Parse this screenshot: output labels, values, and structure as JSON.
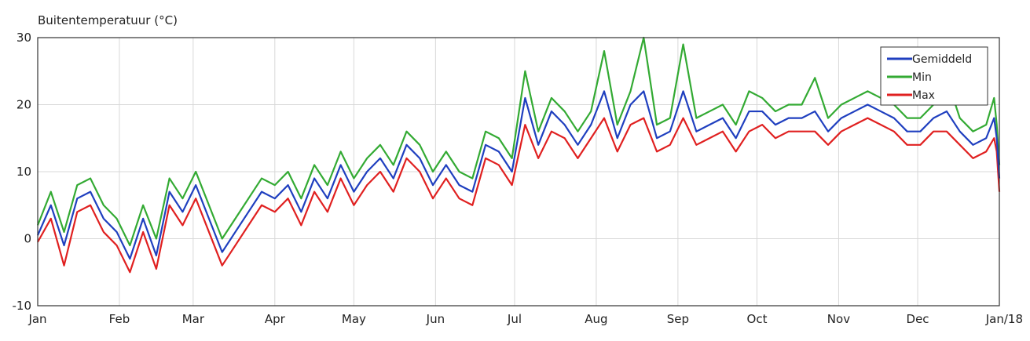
{
  "chart_data": {
    "type": "line",
    "title": "Buitentemperatuur (°C)",
    "xlabel": "",
    "ylabel": "",
    "ylim": [
      -10,
      30
    ],
    "yticks": [
      -10,
      0,
      10,
      20,
      30
    ],
    "grid": true,
    "legend_position": "top-right",
    "x_months": [
      "Jan",
      "Feb",
      "Mar",
      "Apr",
      "May",
      "Jun",
      "Jul",
      "Aug",
      "Sep",
      "Oct",
      "Nov",
      "Dec",
      "Jan/18"
    ],
    "month_days": [
      0,
      31,
      59,
      90,
      120,
      151,
      181,
      212,
      243,
      273,
      304,
      334,
      365
    ],
    "series": [
      {
        "name": "Gemiddeld",
        "color": "#1f3fbf",
        "values": [
          [
            0,
            0.5
          ],
          [
            5,
            5
          ],
          [
            10,
            -1
          ],
          [
            15,
            6
          ],
          [
            20,
            7
          ],
          [
            25,
            3
          ],
          [
            30,
            1
          ],
          [
            35,
            -3
          ],
          [
            40,
            3
          ],
          [
            45,
            -2.5
          ],
          [
            50,
            7
          ],
          [
            55,
            4
          ],
          [
            60,
            8
          ],
          [
            65,
            3
          ],
          [
            70,
            -2
          ],
          [
            75,
            1
          ],
          [
            80,
            4
          ],
          [
            85,
            7
          ],
          [
            90,
            6
          ],
          [
            95,
            8
          ],
          [
            100,
            4
          ],
          [
            105,
            9
          ],
          [
            110,
            6
          ],
          [
            115,
            11
          ],
          [
            120,
            7
          ],
          [
            125,
            10
          ],
          [
            130,
            12
          ],
          [
            135,
            9
          ],
          [
            140,
            14
          ],
          [
            145,
            12
          ],
          [
            150,
            8
          ],
          [
            155,
            11
          ],
          [
            160,
            8
          ],
          [
            165,
            7
          ],
          [
            170,
            14
          ],
          [
            175,
            13
          ],
          [
            180,
            10
          ],
          [
            185,
            21
          ],
          [
            190,
            14
          ],
          [
            195,
            19
          ],
          [
            200,
            17
          ],
          [
            205,
            14
          ],
          [
            210,
            17
          ],
          [
            215,
            22
          ],
          [
            220,
            15
          ],
          [
            225,
            20
          ],
          [
            230,
            22
          ],
          [
            235,
            15
          ],
          [
            240,
            16
          ],
          [
            245,
            22
          ],
          [
            250,
            16
          ],
          [
            255,
            17
          ],
          [
            260,
            18
          ],
          [
            265,
            15
          ],
          [
            270,
            19
          ],
          [
            275,
            19
          ],
          [
            280,
            17
          ],
          [
            285,
            18
          ],
          [
            290,
            18
          ],
          [
            295,
            19
          ],
          [
            300,
            16
          ],
          [
            305,
            18
          ],
          [
            310,
            19
          ],
          [
            315,
            20
          ],
          [
            320,
            19
          ],
          [
            325,
            18
          ],
          [
            330,
            16
          ],
          [
            335,
            16
          ],
          [
            340,
            18
          ],
          [
            345,
            19
          ],
          [
            350,
            16
          ],
          [
            355,
            14
          ],
          [
            360,
            15
          ],
          [
            363,
            18
          ],
          [
            364,
            15
          ],
          [
            365,
            9
          ]
        ]
      },
      {
        "name": "Min",
        "color": "#33aa33",
        "values": [
          [
            0,
            2
          ],
          [
            5,
            7
          ],
          [
            10,
            1
          ],
          [
            15,
            8
          ],
          [
            20,
            9
          ],
          [
            25,
            5
          ],
          [
            30,
            3
          ],
          [
            35,
            -1
          ],
          [
            40,
            5
          ],
          [
            45,
            0
          ],
          [
            50,
            9
          ],
          [
            55,
            6
          ],
          [
            60,
            10
          ],
          [
            65,
            5
          ],
          [
            70,
            0
          ],
          [
            75,
            3
          ],
          [
            80,
            6
          ],
          [
            85,
            9
          ],
          [
            90,
            8
          ],
          [
            95,
            10
          ],
          [
            100,
            6
          ],
          [
            105,
            11
          ],
          [
            110,
            8
          ],
          [
            115,
            13
          ],
          [
            120,
            9
          ],
          [
            125,
            12
          ],
          [
            130,
            14
          ],
          [
            135,
            11
          ],
          [
            140,
            16
          ],
          [
            145,
            14
          ],
          [
            150,
            10
          ],
          [
            155,
            13
          ],
          [
            160,
            10
          ],
          [
            165,
            9
          ],
          [
            170,
            16
          ],
          [
            175,
            15
          ],
          [
            180,
            12
          ],
          [
            185,
            25
          ],
          [
            190,
            16
          ],
          [
            195,
            21
          ],
          [
            200,
            19
          ],
          [
            205,
            16
          ],
          [
            210,
            19
          ],
          [
            215,
            28
          ],
          [
            220,
            17
          ],
          [
            225,
            22
          ],
          [
            230,
            30
          ],
          [
            235,
            17
          ],
          [
            240,
            18
          ],
          [
            245,
            29
          ],
          [
            250,
            18
          ],
          [
            255,
            19
          ],
          [
            260,
            20
          ],
          [
            265,
            17
          ],
          [
            270,
            22
          ],
          [
            275,
            21
          ],
          [
            280,
            19
          ],
          [
            285,
            20
          ],
          [
            290,
            20
          ],
          [
            295,
            24
          ],
          [
            300,
            18
          ],
          [
            305,
            20
          ],
          [
            310,
            21
          ],
          [
            315,
            22
          ],
          [
            320,
            21
          ],
          [
            325,
            20
          ],
          [
            330,
            18
          ],
          [
            335,
            18
          ],
          [
            340,
            20
          ],
          [
            345,
            24
          ],
          [
            350,
            18
          ],
          [
            355,
            16
          ],
          [
            360,
            17
          ],
          [
            363,
            21
          ],
          [
            364,
            17
          ],
          [
            365,
            11
          ]
        ]
      },
      {
        "name": "Max",
        "color": "#e02020",
        "values": [
          [
            0,
            -0.5
          ],
          [
            5,
            3
          ],
          [
            10,
            -4
          ],
          [
            15,
            4
          ],
          [
            20,
            5
          ],
          [
            25,
            1
          ],
          [
            30,
            -1
          ],
          [
            35,
            -5
          ],
          [
            40,
            1
          ],
          [
            45,
            -4.5
          ],
          [
            50,
            5
          ],
          [
            55,
            2
          ],
          [
            60,
            6
          ],
          [
            65,
            1
          ],
          [
            70,
            -4
          ],
          [
            75,
            -1
          ],
          [
            80,
            2
          ],
          [
            85,
            5
          ],
          [
            90,
            4
          ],
          [
            95,
            6
          ],
          [
            100,
            2
          ],
          [
            105,
            7
          ],
          [
            110,
            4
          ],
          [
            115,
            9
          ],
          [
            120,
            5
          ],
          [
            125,
            8
          ],
          [
            130,
            10
          ],
          [
            135,
            7
          ],
          [
            140,
            12
          ],
          [
            145,
            10
          ],
          [
            150,
            6
          ],
          [
            155,
            9
          ],
          [
            160,
            6
          ],
          [
            165,
            5
          ],
          [
            170,
            12
          ],
          [
            175,
            11
          ],
          [
            180,
            8
          ],
          [
            185,
            17
          ],
          [
            190,
            12
          ],
          [
            195,
            16
          ],
          [
            200,
            15
          ],
          [
            205,
            12
          ],
          [
            210,
            15
          ],
          [
            215,
            18
          ],
          [
            220,
            13
          ],
          [
            225,
            17
          ],
          [
            230,
            18
          ],
          [
            235,
            13
          ],
          [
            240,
            14
          ],
          [
            245,
            18
          ],
          [
            250,
            14
          ],
          [
            255,
            15
          ],
          [
            260,
            16
          ],
          [
            265,
            13
          ],
          [
            270,
            16
          ],
          [
            275,
            17
          ],
          [
            280,
            15
          ],
          [
            285,
            16
          ],
          [
            290,
            16
          ],
          [
            295,
            16
          ],
          [
            300,
            14
          ],
          [
            305,
            16
          ],
          [
            310,
            17
          ],
          [
            315,
            18
          ],
          [
            320,
            17
          ],
          [
            325,
            16
          ],
          [
            330,
            14
          ],
          [
            335,
            14
          ],
          [
            340,
            16
          ],
          [
            345,
            16
          ],
          [
            350,
            14
          ],
          [
            355,
            12
          ],
          [
            360,
            13
          ],
          [
            363,
            15
          ],
          [
            364,
            13
          ],
          [
            365,
            7
          ]
        ]
      }
    ]
  }
}
